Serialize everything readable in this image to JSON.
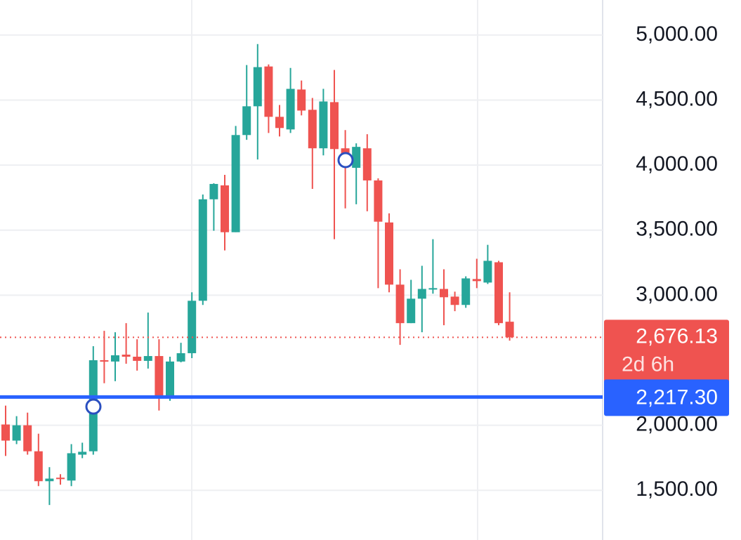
{
  "chart_data": {
    "type": "candlestick",
    "up_color": "#26a69a",
    "down_color": "#ef5350",
    "ylim": [
      1118,
      5269
    ],
    "yticks": [
      {
        "value": 1500,
        "label": "1,500.00"
      },
      {
        "value": 2000,
        "label": "2,000.00"
      },
      {
        "value": 3000,
        "label": "3,000.00"
      },
      {
        "value": 3500,
        "label": "3,500.00"
      },
      {
        "value": 4000,
        "label": "4,000.00"
      },
      {
        "value": 4500,
        "label": "4,500.00"
      },
      {
        "value": 5000,
        "label": "5,000.00"
      }
    ],
    "grid": true,
    "open": [
      2006,
      1882,
      2000,
      1800,
      1570,
      1597,
      1575,
      1774,
      1800,
      2500,
      2490,
      2543,
      2527,
      2495,
      2532,
      2215,
      2490,
      2554,
      2957,
      3737,
      3844,
      3484,
      4231,
      4452,
      4758,
      4371,
      4274,
      4581,
      4425,
      4129,
      4484,
      4129,
      3979,
      4129,
      3882,
      3559,
      3081,
      2785,
      2973,
      3043,
      3048,
      2989,
      2925,
      3124,
      3097,
      3253,
      2796
    ],
    "high": [
      2151,
      2070,
      2097,
      1935,
      1678,
      1624,
      1855,
      1866,
      2608,
      2726,
      2715,
      2785,
      2661,
      2866,
      2661,
      2527,
      2634,
      3022,
      3774,
      3860,
      3925,
      4301,
      4769,
      4930,
      4774,
      4462,
      4747,
      4650,
      4516,
      4586,
      4731,
      4269,
      4167,
      4237,
      3898,
      3629,
      3199,
      3118,
      3226,
      3430,
      3199,
      3027,
      3145,
      3280,
      3387,
      3264,
      3022
    ],
    "low": [
      1764,
      1855,
      1774,
      1532,
      1387,
      1543,
      1532,
      1747,
      1774,
      2323,
      2339,
      2473,
      2420,
      2436,
      2113,
      2188,
      2484,
      2516,
      2925,
      3495,
      3344,
      3484,
      4194,
      4043,
      4247,
      4220,
      4247,
      4382,
      3817,
      4075,
      3430,
      3667,
      3699,
      3645,
      3054,
      3022,
      2618,
      2785,
      2715,
      3011,
      2769,
      2877,
      2903,
      3054,
      3086,
      2769,
      2650
    ],
    "close": [
      1882,
      2000,
      1800,
      1570,
      1590,
      1586,
      1785,
      1796,
      2500,
      2495,
      2538,
      2527,
      2495,
      2532,
      2215,
      2490,
      2554,
      2957,
      3737,
      3855,
      3484,
      4231,
      4452,
      4753,
      4371,
      4285,
      4586,
      4419,
      4129,
      4489,
      4123,
      4043,
      4140,
      3882,
      3565,
      3081,
      2785,
      2973,
      3048,
      3054,
      2984,
      2925,
      3129,
      3108,
      3264,
      2785,
      2676.13
    ],
    "last_price": {
      "value": 2676.13,
      "label": "2,676.13"
    },
    "countdown": "2d 6h",
    "price_line": {
      "value": 2217.3,
      "label": "2,217.30",
      "color": "#2962ff"
    }
  }
}
